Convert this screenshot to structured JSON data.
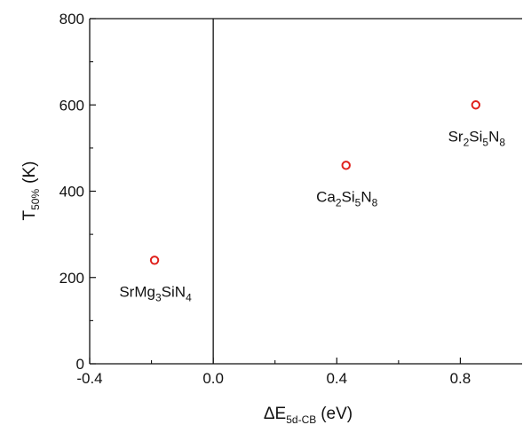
{
  "chart_data": {
    "type": "scatter",
    "title": "",
    "xlabel": {
      "main": "ΔE",
      "sub": "5d-CB",
      "unit": "(eV)"
    },
    "ylabel": {
      "main": "T",
      "sub": "50%",
      "unit": "(K)"
    },
    "xlim": [
      -0.4,
      1.0
    ],
    "ylim": [
      0,
      800
    ],
    "x_ticks": [
      -0.4,
      0.0,
      0.4,
      0.8
    ],
    "x_tick_labels": [
      "-0.4",
      "0.0",
      "0.4",
      "0.8"
    ],
    "y_ticks": [
      0,
      200,
      400,
      600,
      800
    ],
    "y_tick_labels": [
      "0",
      "200",
      "400",
      "600",
      "800"
    ],
    "reference_line_x": 0.0,
    "grid": false,
    "marker": {
      "shape": "open-circle",
      "color": "#e0201b"
    },
    "points": [
      {
        "x": -0.19,
        "y": 240,
        "label": [
          {
            "t": "SrMg",
            "s": "base"
          },
          {
            "t": "3",
            "s": "sub"
          },
          {
            "t": "SiN",
            "s": "base"
          },
          {
            "t": "4",
            "s": "sub"
          }
        ]
      },
      {
        "x": 0.43,
        "y": 460,
        "label": [
          {
            "t": "Ca",
            "s": "base"
          },
          {
            "t": "2",
            "s": "sub"
          },
          {
            "t": "Si",
            "s": "base"
          },
          {
            "t": "5",
            "s": "sub"
          },
          {
            "t": "N",
            "s": "base"
          },
          {
            "t": "8",
            "s": "sub"
          }
        ]
      },
      {
        "x": 0.85,
        "y": 600,
        "label": [
          {
            "t": "Sr",
            "s": "base"
          },
          {
            "t": "2",
            "s": "sub"
          },
          {
            "t": "Si",
            "s": "base"
          },
          {
            "t": "5",
            "s": "sub"
          },
          {
            "t": "N",
            "s": "base"
          },
          {
            "t": "8",
            "s": "sub"
          }
        ]
      }
    ]
  }
}
